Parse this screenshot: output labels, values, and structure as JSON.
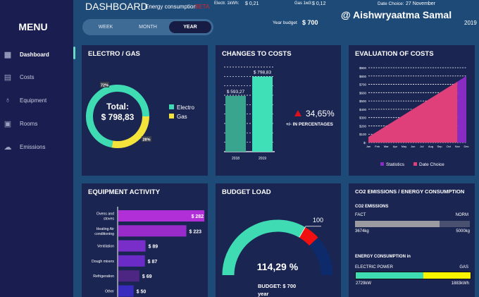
{
  "sidebar": {
    "title": "MENU",
    "items": [
      {
        "label": "Dashboard",
        "icon": "dashboard-icon",
        "active": true
      },
      {
        "label": "Costs",
        "icon": "costs-icon"
      },
      {
        "label": "Equipment",
        "icon": "lightbulb-icon"
      },
      {
        "label": "Rooms",
        "icon": "rooms-icon"
      },
      {
        "label": "Emissions",
        "icon": "cloud-icon"
      }
    ]
  },
  "header": {
    "title": "DASHBOARD",
    "subtitle": "Energy consumption",
    "beta": "BETA",
    "electr_label": "Electr. 1kWh:",
    "electr_value": "$ 0,21",
    "gas_label": "Gas 1м3:",
    "gas_value": "$ 0,12",
    "date_label": "Date Choice:",
    "date_value": "27 November",
    "year": "2019",
    "budget_label": "Year budget",
    "budget_value": "$ 700",
    "author": "@ Aishwryaatma Samal",
    "periods": [
      "WEEK",
      "MONTH",
      "YEAR"
    ],
    "selected_period": "YEAR"
  },
  "colors": {
    "electro": "#3fdcb4",
    "gas": "#f4e33a",
    "statistics": "#8a2bc4",
    "date_choice": "#e0407a",
    "alert": "#e0101a"
  },
  "electro_gas": {
    "title": "ELECTRO / GAS",
    "total_label": "Total:",
    "total_value": "$ 798,83",
    "electro_pct_label": "72%",
    "gas_pct_label": "28%",
    "legend": [
      "Electro",
      "Gas"
    ],
    "chart_data": {
      "type": "pie",
      "categories": [
        "Electro",
        "Gas"
      ],
      "values": [
        72,
        28
      ]
    }
  },
  "changes": {
    "title": "CHANGES TO COSTS",
    "change": "34,65%",
    "change_label": "+/- IN PERCENTAGES",
    "chart_data": {
      "type": "bar",
      "categories": [
        "2018",
        "2019"
      ],
      "values": [
        593.27,
        798.83
      ],
      "data_labels": [
        "$ 593,27",
        "$ 798,83"
      ],
      "ylim": [
        0,
        900
      ],
      "grid": true
    }
  },
  "evaluation": {
    "title": "EVALUATION OF COSTS",
    "chart_data": {
      "type": "area",
      "categories": [
        "Jan",
        "Feb",
        "Mar",
        "Apr",
        "May",
        "Jun",
        "Jul",
        "Aug",
        "Sep",
        "Oct",
        "Nov",
        "Dec"
      ],
      "values": [
        67,
        133,
        200,
        266,
        333,
        400,
        466,
        533,
        599,
        666,
        732,
        799
      ],
      "yticks": [
        "$-",
        "$100",
        "$200",
        "$300",
        "$400",
        "$500",
        "$600",
        "$700",
        "$800",
        "$900"
      ],
      "ylim": [
        0,
        900
      ],
      "grid": true,
      "series": [
        {
          "name": "Statistics"
        },
        {
          "name": "Date Choice"
        }
      ],
      "legend": "bottom"
    }
  },
  "equipment": {
    "title": "EQUIPMENT ACTIVITY",
    "chart_data": {
      "type": "bar",
      "orientation": "horizontal",
      "categories": [
        "Ovens and stoves",
        "Heating Air conditioning",
        "Ventilation",
        "Dough mixers",
        "Refrigeration",
        "Other"
      ],
      "values": [
        282,
        223,
        89,
        87,
        69,
        50
      ],
      "data_labels": [
        "$ 282",
        "$ 223",
        "$ 89",
        "$ 87",
        "$ 69",
        "$ 50"
      ],
      "colors": [
        "#b12fd6",
        "#9a2bcb",
        "#7a2ec9",
        "#6a2bc6",
        "#4d2582",
        "#3a2bbf"
      ]
    }
  },
  "budget_load": {
    "title": "BUDGET LOAD",
    "value": "114,29 %",
    "mark": "100",
    "budget": "BUDGET: $ 700",
    "period": "year",
    "chart_data": {
      "type": "gauge",
      "value": 114.29,
      "threshold": 100,
      "max": 150
    }
  },
  "co2": {
    "title": "CO2 EMISSIONS / ENERGY CONSUMPTION",
    "emissions_title": "CO2 EMISSIONS",
    "fact_label": "FACT",
    "norm_label": "NORM",
    "fact": "3674kg",
    "norm": "5000kg",
    "fact_ratio": 0.735,
    "energy_title": "ENERGY CONSUMPTION in",
    "electric_label": "ELECTRIC POWER",
    "gas_label": "GAS",
    "electric": "2729kW",
    "gas": "1883kWh",
    "electric_ratio": 0.59
  }
}
